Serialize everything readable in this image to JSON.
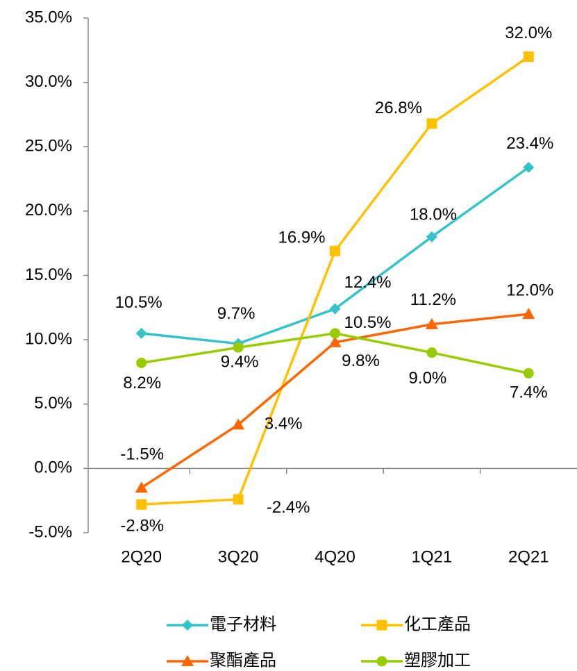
{
  "chart_data": {
    "type": "line",
    "categories": [
      "2Q20",
      "3Q20",
      "4Q20",
      "1Q21",
      "2Q21"
    ],
    "series": [
      {
        "name": "電子材料",
        "color": "#33c3c9",
        "marker": "diamond",
        "values": [
          10.5,
          9.7,
          12.4,
          18.0,
          23.4
        ],
        "value_labels": [
          "10.5%",
          "9.7%",
          "12.4%",
          "18.0%",
          "23.4%"
        ]
      },
      {
        "name": "化工產品",
        "color": "#ffc000",
        "marker": "square",
        "values": [
          -2.8,
          -2.4,
          16.9,
          26.8,
          32.0
        ],
        "value_labels": [
          "-2.8%",
          "-2.4%",
          "16.9%",
          "26.8%",
          "32.0%"
        ]
      },
      {
        "name": "聚酯產品",
        "color": "#ff6600",
        "marker": "triangle",
        "values": [
          -1.5,
          3.4,
          9.8,
          11.2,
          12.0
        ],
        "value_labels": [
          "-1.5%",
          "3.4%",
          "9.8%",
          "11.2%",
          "12.0%"
        ]
      },
      {
        "name": "塑膠加工",
        "color": "#99cc00",
        "marker": "circle",
        "values": [
          8.2,
          9.4,
          10.5,
          9.0,
          7.4
        ],
        "value_labels": [
          "8.2%",
          "9.4%",
          "10.5%",
          "9.0%",
          "7.4%"
        ]
      }
    ],
    "ylim": [
      -5,
      35
    ],
    "yticks": [
      {
        "value": -5,
        "label": "-5.0%"
      },
      {
        "value": 0,
        "label": "0.0%"
      },
      {
        "value": 5,
        "label": "5.0%"
      },
      {
        "value": 10,
        "label": "10.0%"
      },
      {
        "value": 15,
        "label": "15.0%"
      },
      {
        "value": 20,
        "label": "20.0%"
      },
      {
        "value": 25,
        "label": "25.0%"
      },
      {
        "value": 30,
        "label": "30.0%"
      },
      {
        "value": 35,
        "label": "35.0%"
      }
    ],
    "legend": "bottom"
  }
}
